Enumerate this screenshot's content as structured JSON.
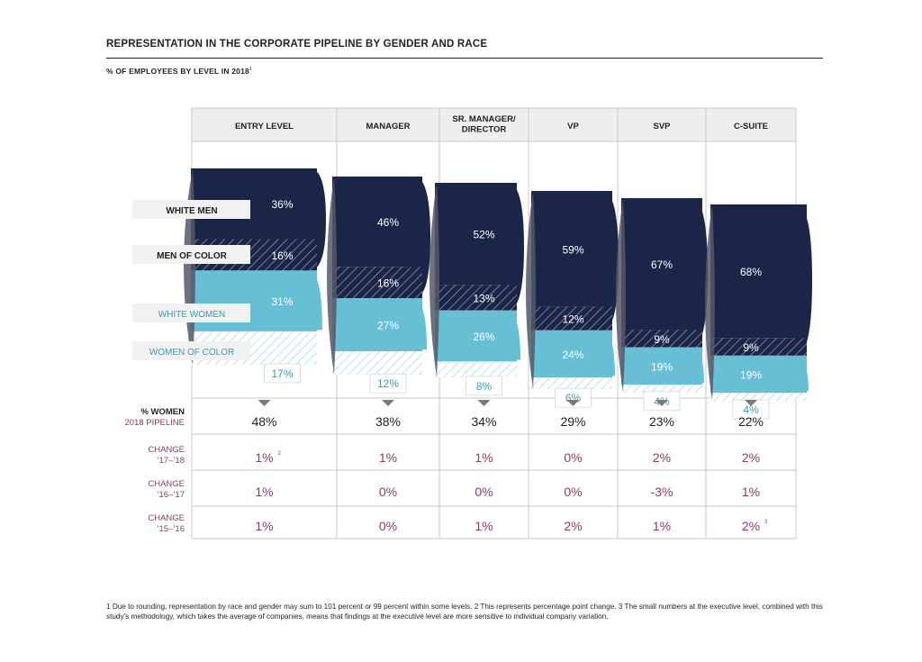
{
  "title": "REPRESENTATION IN THE CORPORATE PIPELINE BY GENDER AND RACE",
  "subtitle": "% OF EMPLOYEES BY LEVEL IN 2018",
  "subtitle_sup": "1",
  "footnote": "1 Due to rounding, representation by race and gender may sum to 101 percent or 99 percent within some levels.  2 This represents percentage point change.  3 The small numbers at the executive level, combined with this study's methodology, which takes the average of companies, means that findings at the executive level are more sensitive to individual company variation.",
  "colors": {
    "white_men": "#1b2547",
    "men_of_color": "#1b2547",
    "white_women": "#67bfd6",
    "women_of_color": "#67bfd6",
    "change_text": "#8b3a6b",
    "women_label": "#3a9bb4",
    "grid": "#c9c9c9",
    "header_bg": "#eeeeee"
  },
  "chart_data": {
    "type": "table",
    "categories": [
      "ENTRY LEVEL",
      "MANAGER",
      "SR. MANAGER/\nDIRECTOR",
      "VP",
      "SVP",
      "C-SUITE"
    ],
    "series": [
      {
        "name": "WHITE MEN",
        "values": [
          36,
          46,
          52,
          59,
          67,
          68
        ]
      },
      {
        "name": "MEN OF COLOR",
        "values": [
          16,
          16,
          13,
          12,
          9,
          9
        ]
      },
      {
        "name": "WHITE WOMEN",
        "values": [
          31,
          27,
          26,
          24,
          19,
          19
        ]
      },
      {
        "name": "WOMEN OF COLOR",
        "values": [
          17,
          12,
          8,
          6,
          4,
          4
        ]
      }
    ],
    "pct_women": {
      "label": "% WOMEN",
      "sublabel": "2018 PIPELINE",
      "values": [
        "48%",
        "38%",
        "34%",
        "29%",
        "23%",
        "22%"
      ]
    },
    "changes": [
      {
        "label": "CHANGE",
        "period": "’17–’18",
        "values": [
          "1%",
          "1%",
          "1%",
          "0%",
          "2%",
          "2%"
        ],
        "sups": [
          "2",
          "",
          "",
          "",
          "",
          ""
        ]
      },
      {
        "label": "CHANGE",
        "period": "’16–’17",
        "values": [
          "1%",
          "0%",
          "0%",
          "0%",
          "-3%",
          "1%"
        ],
        "sups": [
          "",
          "",
          "",
          "",
          "",
          ""
        ]
      },
      {
        "label": "CHANGE",
        "period": "’15–’16",
        "values": [
          "1%",
          "0%",
          "1%",
          "2%",
          "1%",
          "2%"
        ],
        "sups": [
          "",
          "",
          "",
          "",
          "",
          "3"
        ]
      }
    ]
  }
}
